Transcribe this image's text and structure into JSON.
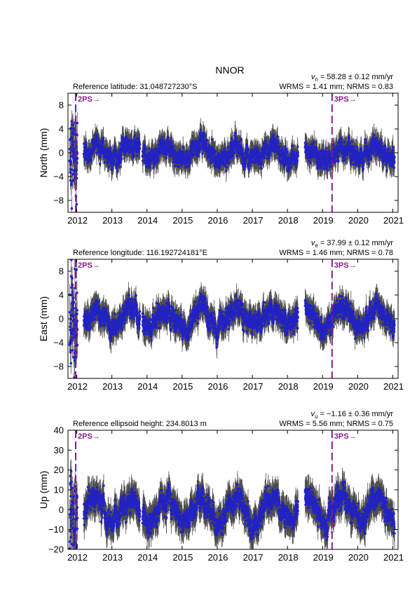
{
  "title": "NNOR",
  "colors": {
    "points": "#1f1fd6",
    "errorbars": "#4d4d4d",
    "break_line": "#8a1a8a"
  },
  "x_ticks": [
    "2012",
    "2013",
    "2014",
    "2015",
    "2016",
    "2017",
    "2018",
    "2019",
    "2020",
    "2021"
  ],
  "chart_data": [
    {
      "type": "scatter",
      "component": "north",
      "ref_label": "Reference latitude: 31.048727230°S",
      "vel_symbol": "v",
      "vel_sub": "n",
      "vel_value": " = 58.28 ± 0.12 mm/yr",
      "stats": "WRMS = 1.41 mm; NRMS = 0.83",
      "ylabel": "North (mm)",
      "ylim": [
        -10,
        10
      ],
      "y_ticks": [
        -8,
        -4,
        0,
        4,
        8
      ],
      "xlim": [
        2011.75,
        2021.15
      ],
      "amplitude": 1.2,
      "noise": 1.3,
      "errorbar": 1.7,
      "breaks": [
        {
          "x": 2011.97,
          "label": "2PS→"
        },
        {
          "x": 2019.27,
          "label": "3PS→"
        }
      ],
      "data_gaps": [
        [
          2012.02,
          2012.2
        ],
        [
          2013.8,
          2013.87
        ],
        [
          2018.3,
          2018.5
        ]
      ],
      "series": [
        {
          "x_start": 2011.8,
          "x_end": 2021.05,
          "trend": 0
        }
      ]
    },
    {
      "type": "scatter",
      "component": "east",
      "ref_label": "Reference longitude: 116.192724181°E",
      "vel_symbol": "v",
      "vel_sub": "e",
      "vel_value": " = 37.99 ± 0.12 mm/yr",
      "stats": "WRMS = 1.46 mm; NRMS = 0.78",
      "ylabel": "East (mm)",
      "ylim": [
        -10,
        10
      ],
      "y_ticks": [
        -8,
        -4,
        0,
        4,
        8
      ],
      "xlim": [
        2011.75,
        2021.15
      ],
      "amplitude": 1.6,
      "noise": 1.4,
      "errorbar": 1.8,
      "breaks": [
        {
          "x": 2011.97,
          "label": "2PS→"
        },
        {
          "x": 2019.27,
          "label": "3PS→"
        }
      ],
      "data_gaps": [
        [
          2012.02,
          2012.2
        ],
        [
          2013.8,
          2013.87
        ],
        [
          2018.3,
          2018.5
        ]
      ],
      "series": [
        {
          "x_start": 2011.8,
          "x_end": 2021.05,
          "trend": 0
        }
      ]
    },
    {
      "type": "scatter",
      "component": "up",
      "ref_label": "Reference ellipsoid height: 234.8013 m",
      "vel_symbol": "v",
      "vel_sub": "u",
      "vel_value": " = −1.16 ± 0.36 mm/yr",
      "stats": "WRMS = 5.56 mm; NRMS = 0.75",
      "ylabel": "Up (mm)",
      "ylim": [
        -20,
        40
      ],
      "y_ticks": [
        -20,
        -10,
        0,
        10,
        20,
        30,
        40
      ],
      "xlim": [
        2011.75,
        2021.15
      ],
      "amplitude": 6.0,
      "noise": 4.5,
      "errorbar": 6.5,
      "breaks": [
        {
          "x": 2011.97,
          "label": "2PS→"
        },
        {
          "x": 2019.27,
          "label": "3PS→"
        }
      ],
      "data_gaps": [
        [
          2012.02,
          2012.2
        ],
        [
          2013.8,
          2013.87
        ],
        [
          2018.3,
          2018.5
        ]
      ],
      "series": [
        {
          "x_start": 2011.8,
          "x_end": 2021.05,
          "trend": 0
        }
      ]
    }
  ]
}
